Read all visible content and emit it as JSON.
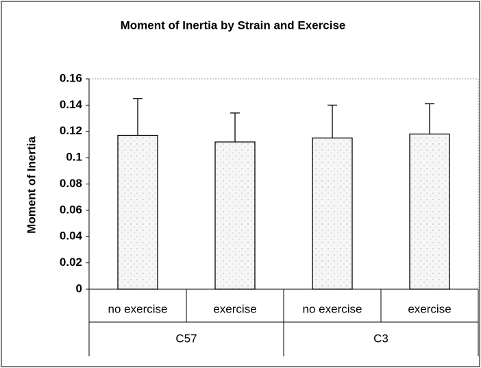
{
  "chart_data": {
    "type": "bar",
    "title": "Moment of Inertia by Strain and Exercise",
    "y_label": "Moment of Inertia",
    "categories": [
      "no exercise",
      "exercise",
      "no exercise",
      "exercise"
    ],
    "groups": [
      "C57",
      "C3"
    ],
    "values": [
      0.117,
      0.112,
      0.115,
      0.118
    ],
    "errors": [
      0.028,
      0.022,
      0.025,
      0.023
    ],
    "color": "#f4f4f4",
    "ylim": [
      0,
      0.16
    ],
    "yticks": [
      0,
      0.02,
      0.04,
      0.06,
      0.08,
      0.1,
      0.12,
      0.14,
      0.16
    ],
    "grid": false
  }
}
